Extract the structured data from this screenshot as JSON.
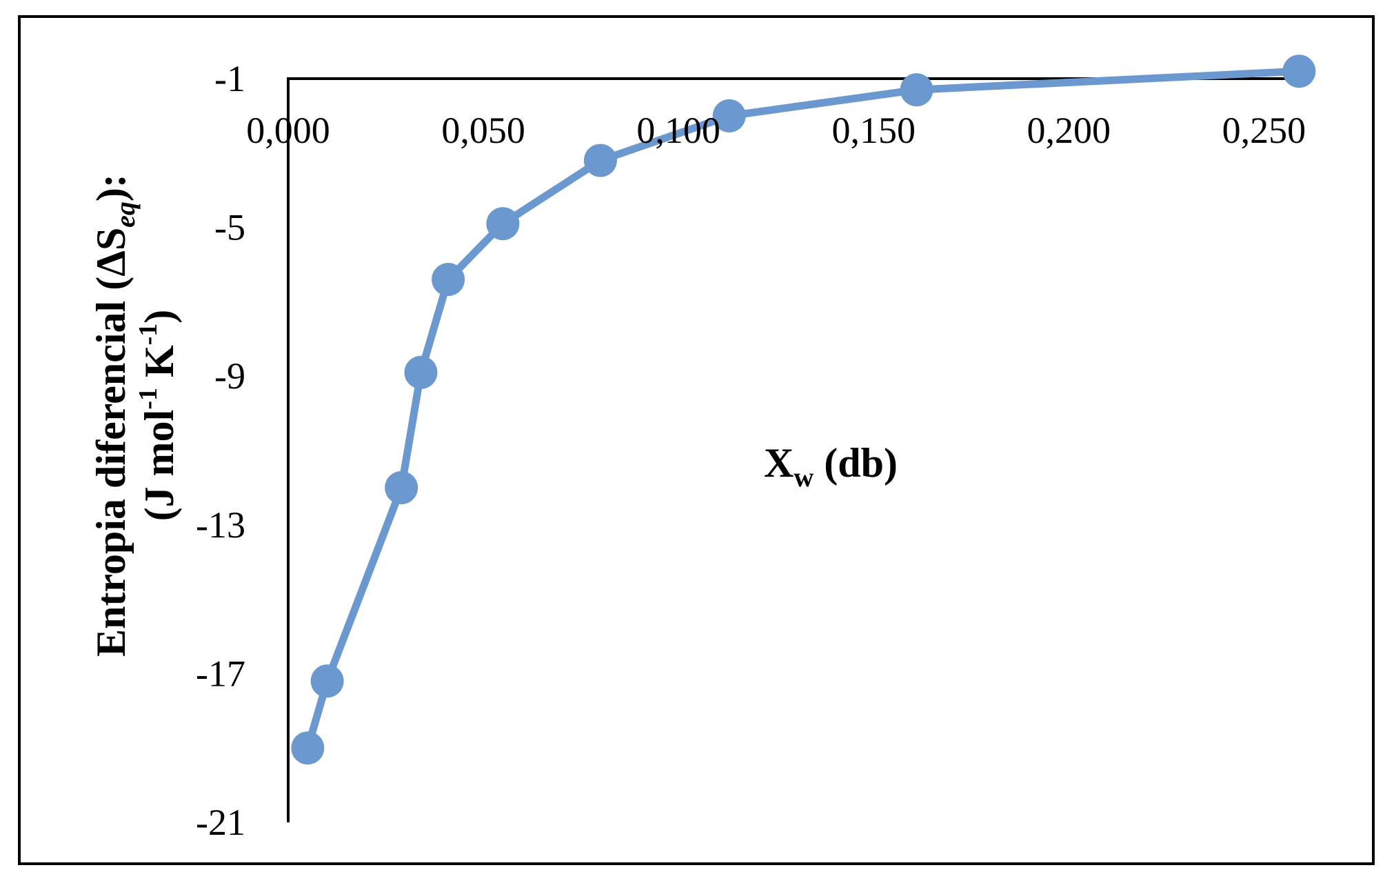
{
  "chart_data": {
    "type": "line",
    "xlabel": {
      "main": "X",
      "sub": "w",
      "rest": " (db)"
    },
    "ylabel": {
      "line1": {
        "pre": "Entropia diferencial (ΔS",
        "sub": "eq",
        "post": "):"
      },
      "line2": {
        "pre": "(J mol",
        "sup1": "-1",
        "mid": " K",
        "sup2": "-1",
        "post": ")"
      }
    },
    "xlim": [
      0,
      0.26
    ],
    "ylim": [
      -21,
      -1
    ],
    "x_ticks": [
      0,
      0.05,
      0.1,
      0.15,
      0.2,
      0.25
    ],
    "x_tick_labels": [
      "0,000",
      "0,050",
      "0,100",
      "0,150",
      "0,200",
      "0,250"
    ],
    "y_ticks": [
      -1,
      -5,
      -9,
      -13,
      -17,
      -21
    ],
    "y_tick_labels": [
      "-1",
      "-5",
      "-9",
      "-13",
      "-17",
      "-21"
    ],
    "grid": false,
    "legend": "none",
    "series": [
      {
        "color": "#6b98cf",
        "x": [
          0.005,
          0.01,
          0.029,
          0.034,
          0.041,
          0.055,
          0.08,
          0.113,
          0.161,
          0.259
        ],
        "y": [
          -19.0,
          -17.2,
          -12.0,
          -8.9,
          -6.4,
          -4.9,
          -3.2,
          -2.0,
          -1.3,
          -0.8
        ]
      }
    ]
  },
  "colors": {
    "axis": "#000000",
    "frame": "#000000",
    "series": "#6b98cf"
  }
}
